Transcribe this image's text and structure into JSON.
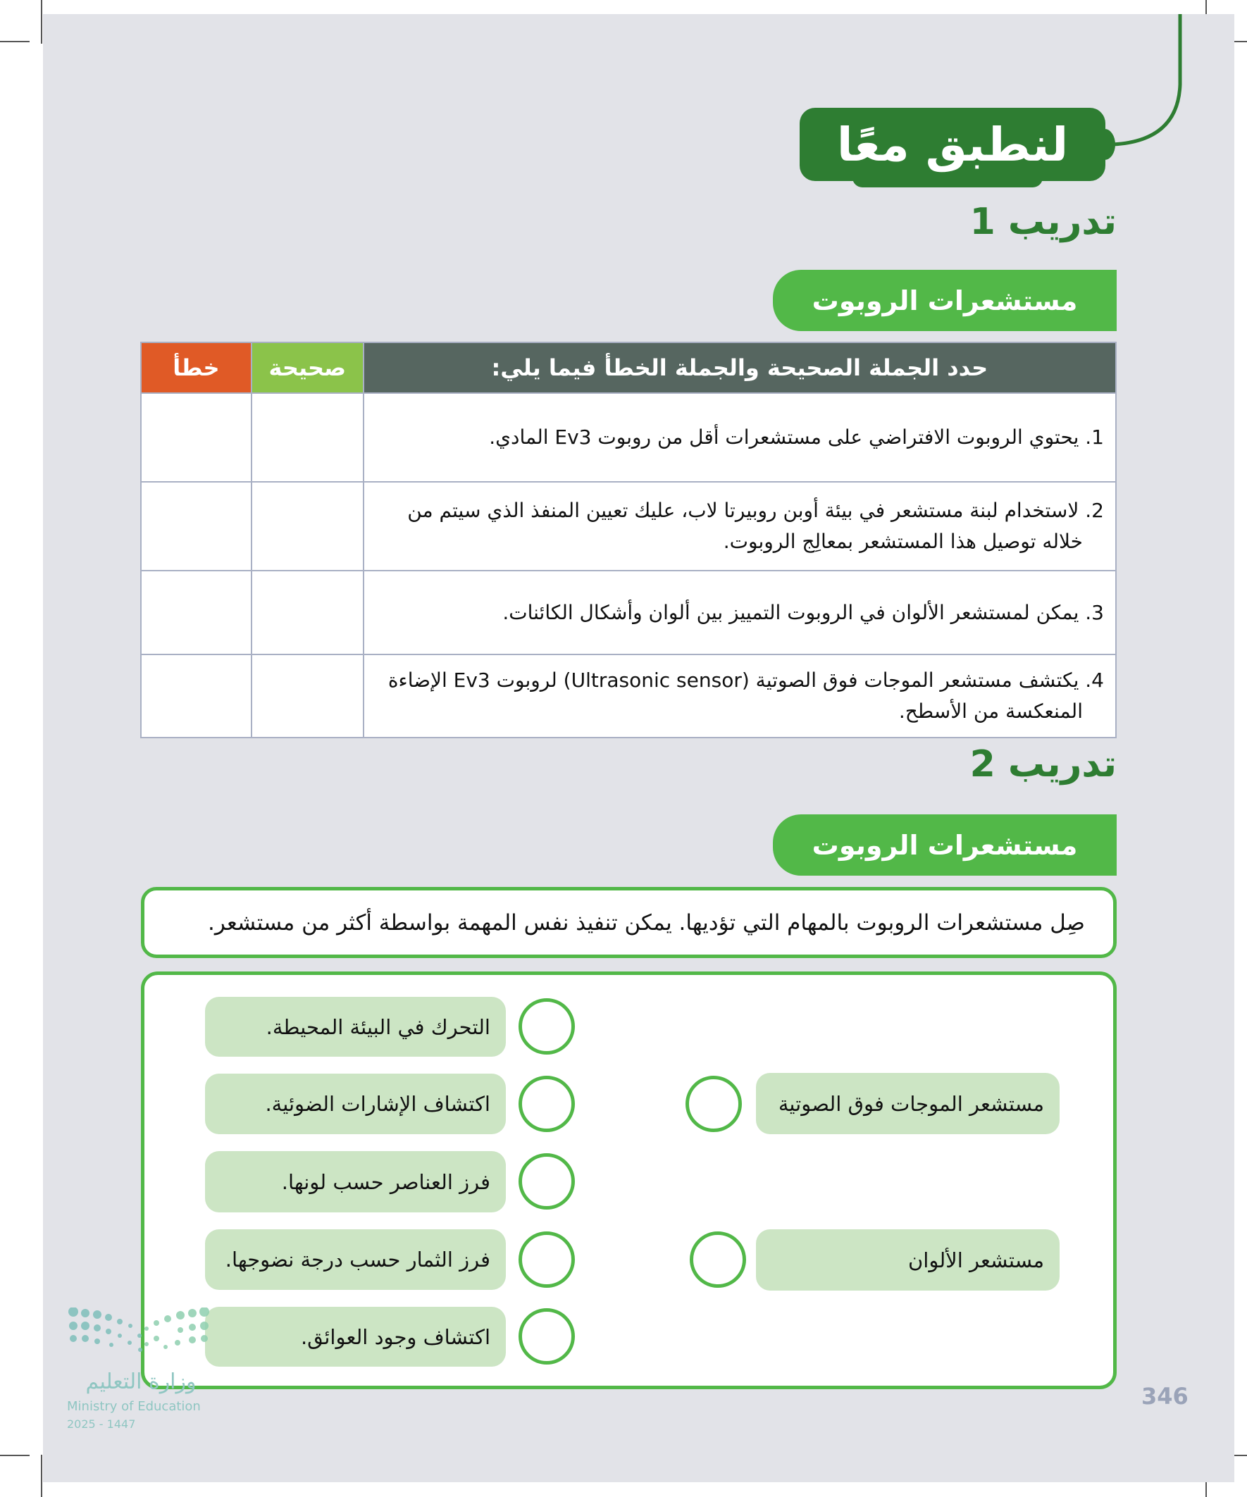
{
  "header": {
    "title": "لنطبق معًا"
  },
  "exercise1": {
    "heading": "تدريب 1",
    "section_label": "مستشعرات الروبوت",
    "table": {
      "headers": {
        "statement": "حدد الجملة الصحيحة والجملة الخطأ فيما يلي:",
        "true": "صحيحة",
        "false": "خطأ"
      },
      "rows": [
        {
          "line1": "1. يحتوي الروبوت الافتراضي على مستشعرات أقل من روبوت Ev3 المادي.",
          "line2": ""
        },
        {
          "line1": "2. لاستخدام لبنة مستشعر في بيئة أوبن روبيرتا لاب، عليك تعيين المنفذ الذي سيتم من",
          "line2": "خلاله توصيل هذا المستشعر بمعالِج الروبوت."
        },
        {
          "line1": "3. يمكن لمستشعر الألوان في الروبوت التمييز بين ألوان وأشكال الكائنات.",
          "line2": ""
        },
        {
          "line1": "4. يكتشف مستشعر الموجات فوق الصوتية (Ultrasonic sensor) لروبوت Ev3 الإضاءة",
          "line2": "المنعكسة من الأسطح."
        }
      ]
    }
  },
  "exercise2": {
    "heading": "تدريب 2",
    "section_label": "مستشعرات الروبوت",
    "instruction": "صِل مستشعرات الروبوت بالمهام التي تؤديها. يمكن تنفيذ نفس المهمة بواسطة أكثر من مستشعر.",
    "sensors": [
      "مستشعر الموجات فوق الصوتية",
      "مستشعر الألوان"
    ],
    "tasks": [
      "التحرك في البيئة المحيطة.",
      "اكتشاف الإشارات الضوئية.",
      "فرز العناصر حسب لونها.",
      "فرز الثمار حسب درجة نضوجها.",
      "اكتشاف وجود العوائق."
    ]
  },
  "footer": {
    "page_number": "346",
    "logo": {
      "arabic": "وزارة التعليم",
      "english": "Ministry of Education",
      "year": "2025 - 1447"
    }
  },
  "colors": {
    "dark_green": "#2e7d32",
    "green": "#52b848",
    "light_green": "#8bc34a",
    "orange": "#e05a26",
    "slate": "#566660",
    "pill": "#cce5c4"
  }
}
